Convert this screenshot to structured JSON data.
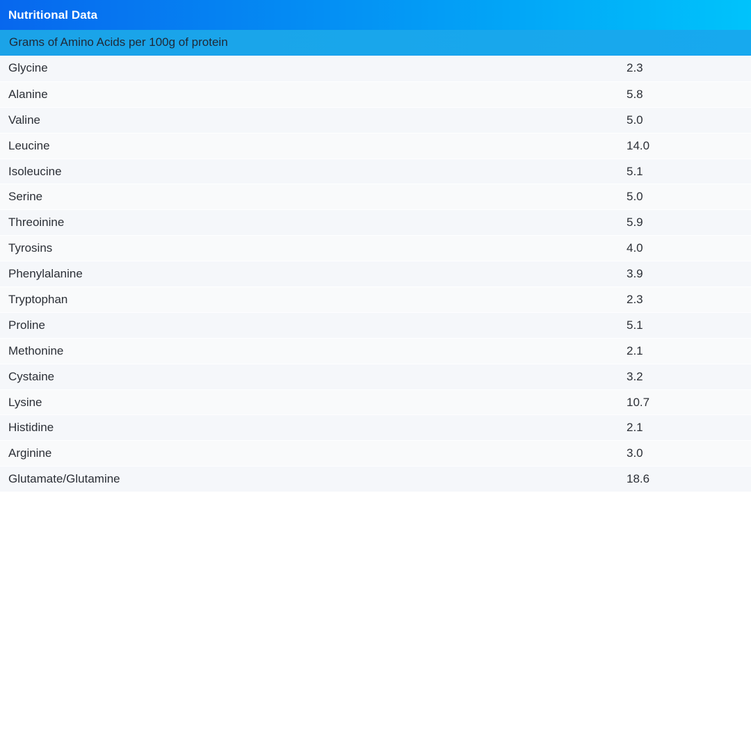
{
  "header": {
    "title": "Nutritional Data"
  },
  "subheader": {
    "title": "Grams of Amino Acids per 100g of protein"
  },
  "colors": {
    "header_gradient_start": "#0767ee",
    "header_gradient_end": "#00c3fb",
    "subheader_gradient_start": "#1ba3e8",
    "subheader_gradient_end": "#17a9ee",
    "header_text": "#ffffff",
    "subheader_text": "#1f2937",
    "row_text": "#2b2f36",
    "row_odd_bg": "#f5f7fa",
    "row_even_bg": "#f9fafb",
    "page_bg": "#ffffff"
  },
  "table": {
    "rows": [
      {
        "name": "Glycine",
        "value": "2.3"
      },
      {
        "name": "Alanine",
        "value": "5.8"
      },
      {
        "name": "Valine",
        "value": "5.0"
      },
      {
        "name": "Leucine",
        "value": "14.0"
      },
      {
        "name": "Isoleucine",
        "value": "5.1"
      },
      {
        "name": "Serine",
        "value": "5.0"
      },
      {
        "name": "Threoinine",
        "value": "5.9"
      },
      {
        "name": "Tyrosins",
        "value": "4.0"
      },
      {
        "name": "Phenylalanine",
        "value": "3.9"
      },
      {
        "name": "Tryptophan",
        "value": "2.3"
      },
      {
        "name": "Proline",
        "value": "5.1"
      },
      {
        "name": "Methonine",
        "value": "2.1"
      },
      {
        "name": "Cystaine",
        "value": "3.2"
      },
      {
        "name": "Lysine",
        "value": "10.7"
      },
      {
        "name": "Histidine",
        "value": "2.1"
      },
      {
        "name": "Arginine",
        "value": "3.0"
      },
      {
        "name": "Glutamate/Glutamine",
        "value": "18.6"
      }
    ]
  },
  "chart_data": {
    "type": "table",
    "title": "Nutritional Data",
    "subtitle": "Grams of Amino Acids per 100g of protein",
    "categories": [
      "Glycine",
      "Alanine",
      "Valine",
      "Leucine",
      "Isoleucine",
      "Serine",
      "Threoinine",
      "Tyrosins",
      "Phenylalanine",
      "Tryptophan",
      "Proline",
      "Methonine",
      "Cystaine",
      "Lysine",
      "Histidine",
      "Arginine",
      "Glutamate/Glutamine"
    ],
    "values": [
      2.3,
      5.8,
      5.0,
      14.0,
      5.1,
      5.0,
      5.9,
      4.0,
      3.9,
      2.3,
      5.1,
      2.1,
      3.2,
      10.7,
      2.1,
      3.0,
      18.6
    ],
    "unit": "g per 100g of protein",
    "legend": "none",
    "grid": "off"
  }
}
